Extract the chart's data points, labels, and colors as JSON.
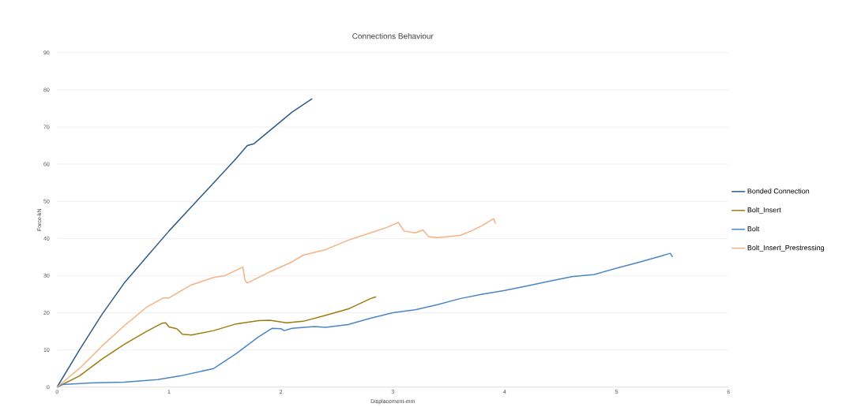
{
  "chart_data": {
    "type": "line",
    "title": "Connections Behaviour",
    "xlabel": "Displacement-mm",
    "ylabel": "Force-kN",
    "xlim": [
      0,
      6
    ],
    "ylim": [
      0,
      90
    ],
    "xticks": [
      0,
      1,
      2,
      3,
      4,
      5,
      6
    ],
    "yticks": [
      0,
      10,
      20,
      30,
      40,
      50,
      60,
      70,
      80,
      90
    ],
    "grid": "y",
    "legend": "right",
    "marker": "none",
    "line_style": "solid",
    "series": [
      {
        "name": "Bonded Connection",
        "color": "#2e5a87",
        "x": [
          0,
          0.2,
          0.4,
          0.6,
          0.8,
          1.0,
          1.2,
          1.4,
          1.6,
          1.7,
          1.76,
          1.9,
          2.0,
          2.1,
          2.2,
          2.28
        ],
        "values": [
          0,
          10,
          19.5,
          28,
          35,
          42,
          48.5,
          55,
          61.5,
          65,
          65.5,
          69,
          71.5,
          74,
          76,
          77.6
        ]
      },
      {
        "name": "Bolt_Insert",
        "color": "#9c7c0c",
        "x": [
          0,
          0.2,
          0.4,
          0.6,
          0.8,
          0.94,
          0.97,
          1.0,
          1.07,
          1.12,
          1.2,
          1.4,
          1.6,
          1.8,
          1.9,
          2.05,
          2.2,
          2.4,
          2.6,
          2.8,
          2.85
        ],
        "values": [
          0,
          3,
          7.5,
          11.5,
          15,
          17.2,
          17.3,
          16.2,
          15.7,
          14.2,
          14,
          15.2,
          17,
          17.9,
          18,
          17.3,
          17.7,
          19.3,
          21,
          23.8,
          24.3
        ]
      },
      {
        "name": "Bolt",
        "color": "#4a86c5",
        "x": [
          0,
          0.05,
          0.3,
          0.6,
          0.9,
          1.1,
          1.4,
          1.6,
          1.8,
          1.92,
          2.0,
          2.03,
          2.1,
          2.3,
          2.4,
          2.6,
          2.8,
          3.0,
          3.2,
          3.4,
          3.6,
          3.8,
          4.0,
          4.2,
          4.4,
          4.6,
          4.8,
          5.0,
          5.2,
          5.4,
          5.48,
          5.5
        ],
        "values": [
          0,
          0.7,
          1.1,
          1.3,
          2,
          3,
          5,
          9,
          13.5,
          15.8,
          15.7,
          15.2,
          15.8,
          16.3,
          16.1,
          16.8,
          18.5,
          20,
          20.8,
          22.2,
          23.8,
          25,
          26,
          27.2,
          28.5,
          29.7,
          30.3,
          32,
          33.6,
          35.3,
          36,
          35
        ]
      },
      {
        "name": "Bolt_Insert_Prestressing",
        "color": "#f4b183",
        "x": [
          0,
          0.2,
          0.4,
          0.6,
          0.8,
          0.95,
          1.0,
          1.2,
          1.4,
          1.5,
          1.66,
          1.68,
          1.7,
          1.9,
          2.1,
          2.2,
          2.4,
          2.6,
          2.8,
          2.95,
          3.05,
          3.1,
          3.2,
          3.27,
          3.32,
          3.4,
          3.6,
          3.7,
          3.8,
          3.9,
          3.92
        ],
        "values": [
          0,
          5,
          11,
          16.5,
          21.5,
          24,
          24,
          27.5,
          29.5,
          30,
          32.3,
          28.7,
          28,
          31,
          33.7,
          35.5,
          37,
          39.5,
          41.5,
          43,
          44.3,
          42,
          41.5,
          42.3,
          40.5,
          40.2,
          40.8,
          42,
          43.5,
          45.3,
          44
        ]
      }
    ]
  }
}
